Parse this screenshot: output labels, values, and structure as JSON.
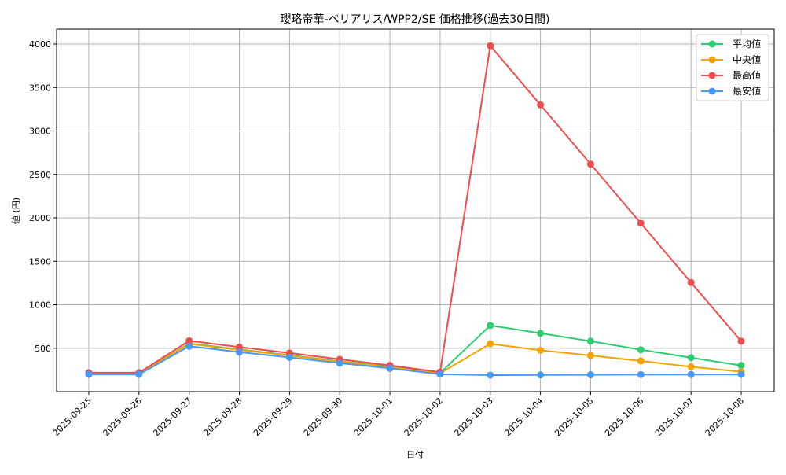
{
  "chart_data": {
    "type": "line",
    "title": "瓔珞帝華-ペリアリス/WPP2/SE 価格推移(過去30日間)",
    "xlabel": "日付",
    "ylabel": "値 (円)",
    "categories": [
      "2025-09-25",
      "2025-09-26",
      "2025-09-27",
      "2025-09-28",
      "2025-09-29",
      "2025-09-30",
      "2025-10-01",
      "2025-10-02",
      "2025-10-03",
      "2025-10-04",
      "2025-10-05",
      "2025-10-06",
      "2025-10-07",
      "2025-10-08"
    ],
    "yticks": [
      500,
      1000,
      1500,
      2000,
      2500,
      3000,
      3500,
      4000
    ],
    "ylim": [
      0,
      4172
    ],
    "grid": true,
    "legend_position": "upper right",
    "series": [
      {
        "name": "平均値",
        "color": "#2ecc71",
        "values": [
          208,
          208,
          555,
          485,
          420,
          350,
          285,
          215,
          762,
          672,
          581,
          482,
          391,
          301
        ]
      },
      {
        "name": "中央値",
        "color": "#f5a300",
        "values": [
          205,
          205,
          550,
          480,
          415,
          345,
          280,
          212,
          551,
          476,
          416,
          353,
          286,
          230
        ]
      },
      {
        "name": "最高値",
        "color": "#f24b4b",
        "values": [
          218,
          218,
          585,
          512,
          445,
          372,
          302,
          225,
          3980,
          3300,
          2618,
          1937,
          1256,
          581
        ]
      },
      {
        "name": "最安値",
        "color": "#4a98f7",
        "values": [
          198,
          198,
          523,
          455,
          394,
          328,
          268,
          200,
          190,
          192,
          194,
          196,
          197,
          198
        ]
      }
    ]
  }
}
